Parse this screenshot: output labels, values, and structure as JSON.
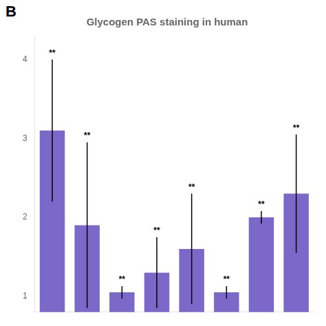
{
  "chart_data": {
    "type": "bar",
    "title": "Glycogen PAS staining in human",
    "categories": [
      null,
      null,
      null,
      null,
      null,
      null,
      null,
      null
    ],
    "values": [
      3.1,
      1.9,
      1.05,
      1.3,
      1.6,
      1.05,
      2.0,
      2.3
    ],
    "errors": [
      0.9,
      1.05,
      0.08,
      0.45,
      0.7,
      0.08,
      0.08,
      0.75
    ],
    "color": "#7B68C8",
    "ylim": [
      0.8,
      4.3
    ],
    "yticks": [
      1,
      2,
      3,
      4
    ],
    "grid": false,
    "tick_labels": "y",
    "annotations": [
      {
        "text": "B"
      },
      {
        "text": "**",
        "bar": 0
      },
      {
        "text": "**",
        "bar": 1
      },
      {
        "text": "**",
        "bar": 2
      },
      {
        "text": "**",
        "bar": 3
      },
      {
        "text": "**",
        "bar": 4
      },
      {
        "text": "**",
        "bar": 5
      },
      {
        "text": "**",
        "bar": 6
      },
      {
        "text": "**",
        "bar": 7
      }
    ]
  }
}
